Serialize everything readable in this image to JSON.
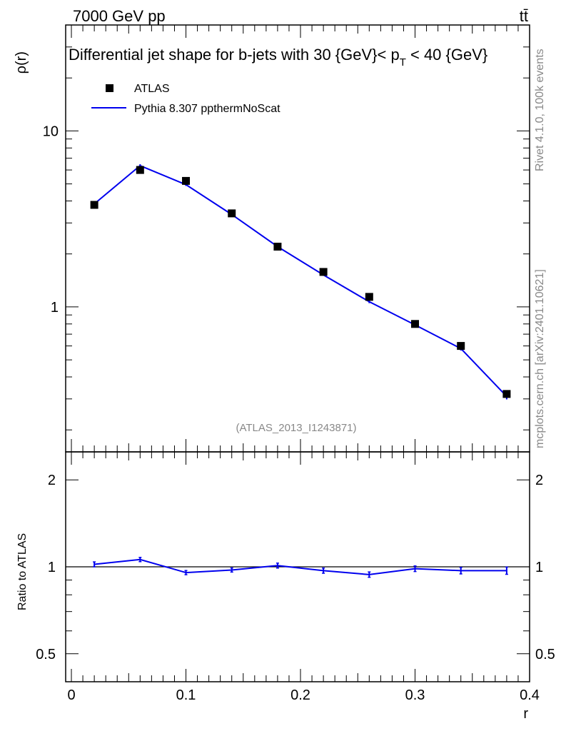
{
  "header": {
    "left": "7000 GeV pp",
    "right": "tt̄"
  },
  "side": {
    "rivet": "Rivet 4.1.0,  100k events",
    "mcplots": "mcplots.cern.ch [arXiv:2401.10621]"
  },
  "chart_data": [
    {
      "type": "line",
      "panel": "main",
      "title": "Differential jet shape for b-jets with 30 {GeV}< p_T < 40 {GeV}",
      "title_parts": {
        "pre": "Differential jet shape for b-jets with 30 {GeV}< p",
        "sub": "T",
        "post": " < 40 {GeV}"
      },
      "ylabel": "ρ(r)",
      "xlabel": "r",
      "yscale": "log",
      "ylim": [
        0.15,
        40
      ],
      "xlim": [
        -0.005,
        0.4
      ],
      "yticks": [
        1,
        10
      ],
      "yticklabels": [
        "1",
        "10"
      ],
      "watermark": "(ATLAS_2013_I1243871)",
      "legend": [
        "ATLAS",
        "Pythia 8.307 ppthermNoScat"
      ],
      "x": [
        0.02,
        0.06,
        0.1,
        0.14,
        0.18,
        0.22,
        0.26,
        0.3,
        0.34,
        0.38
      ],
      "series": [
        {
          "name": "ATLAS",
          "style": "markers",
          "values": [
            3.8,
            6.0,
            5.2,
            3.4,
            2.2,
            1.58,
            1.14,
            0.8,
            0.6,
            0.32
          ]
        },
        {
          "name": "Pythia 8.307 ppthermNoScat",
          "style": "line",
          "color": "#0000ee",
          "values": [
            3.85,
            6.35,
            4.95,
            3.35,
            2.2,
            1.52,
            1.07,
            0.79,
            0.58,
            0.31
          ],
          "errors": [
            0.06,
            0.12,
            0.08,
            0.05,
            0.03,
            0.02,
            0.02,
            0.015,
            0.015,
            0.012
          ]
        }
      ]
    },
    {
      "type": "line",
      "panel": "ratio",
      "ylabel": "Ratio to ATLAS",
      "xlabel": "r",
      "yscale": "log",
      "ylim": [
        0.4,
        2.5
      ],
      "xlim": [
        -0.005,
        0.4
      ],
      "yticks": [
        0.5,
        1,
        2
      ],
      "yticklabels": [
        "0.5",
        "1",
        "2"
      ],
      "xticks": [
        0,
        0.1,
        0.2,
        0.3,
        0.4
      ],
      "xticklabels": [
        "0",
        "0.1",
        "0.2",
        "0.3",
        "0.4"
      ],
      "x": [
        0.02,
        0.06,
        0.1,
        0.14,
        0.18,
        0.22,
        0.26,
        0.3,
        0.34,
        0.38
      ],
      "reference": 1,
      "series": [
        {
          "name": "Pythia 8.307 ppthermNoScat",
          "color": "#0000ee",
          "values": [
            1.02,
            1.06,
            0.955,
            0.975,
            1.01,
            0.97,
            0.94,
            0.985,
            0.97,
            0.97
          ],
          "errors": [
            0.02,
            0.018,
            0.016,
            0.016,
            0.02,
            0.02,
            0.02,
            0.022,
            0.025,
            0.028
          ]
        }
      ]
    }
  ]
}
